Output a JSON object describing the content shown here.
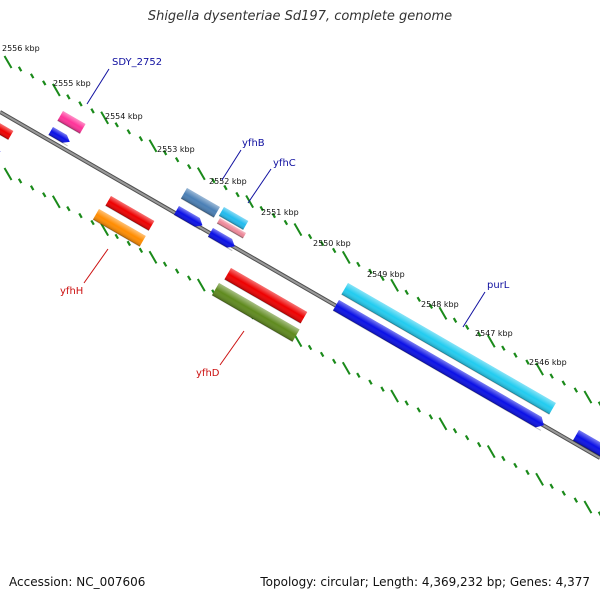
{
  "title": "Shigella dysenteriae Sd197, complete genome",
  "footer": {
    "accession": "Accession: NC_007606",
    "topology": "Topology: circular; Length: 4,369,232 bp; Genes: 4,377"
  },
  "colors": {
    "background": "#ffffff",
    "backbone": "#808080",
    "ticks": "#1a8a1a",
    "label_forward": "#1010a0",
    "label_reverse": "#cc1010"
  },
  "kbp_labels": [
    "2556 kbp",
    "2555 kbp",
    "2554 kbp",
    "2553 kbp",
    "2552 kbp",
    "2551 kbp",
    "2550 kbp",
    "2549 kbp",
    "2548 kbp",
    "2547 kbp",
    "2546 kbp"
  ],
  "gene_labels": [
    {
      "text": "SDY_2752",
      "strand": "forward"
    },
    {
      "text": "yfhB",
      "strand": "forward"
    },
    {
      "text": "yfhC",
      "strand": "forward"
    },
    {
      "text": "purL",
      "strand": "forward"
    },
    {
      "text": "yfhH",
      "strand": "reverse"
    },
    {
      "text": "yfhD",
      "strand": "reverse"
    }
  ]
}
